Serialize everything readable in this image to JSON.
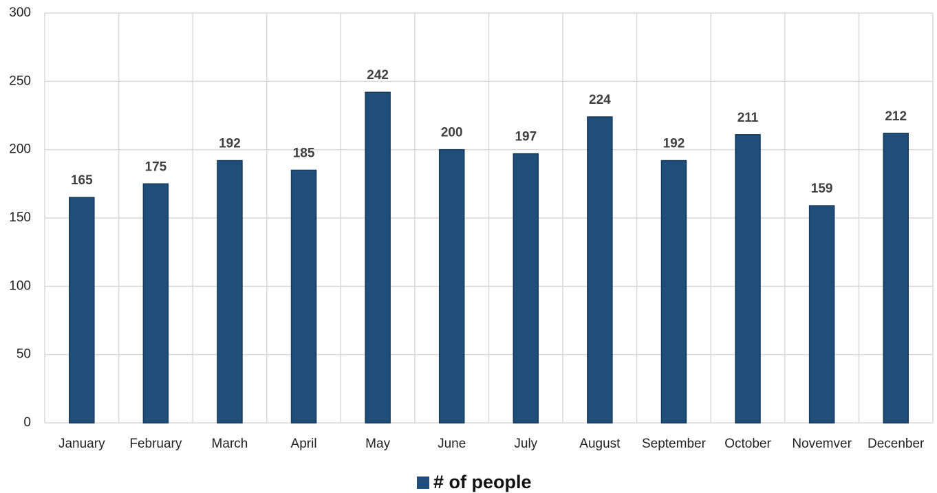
{
  "chart_data": {
    "type": "bar",
    "categories": [
      "January",
      "February",
      "March",
      "April",
      "May",
      "June",
      "July",
      "August",
      "September",
      "October",
      "Novemver",
      "Decenber"
    ],
    "series": [
      {
        "name": "# of people",
        "color": "#1f4e79",
        "values": [
          165,
          175,
          192,
          185,
          242,
          200,
          197,
          224,
          192,
          211,
          159,
          212
        ]
      }
    ],
    "ylim": [
      0,
      300
    ],
    "yticks": [
      0,
      50,
      100,
      150,
      200,
      250,
      300
    ],
    "grid": true,
    "legend": "bottom"
  }
}
